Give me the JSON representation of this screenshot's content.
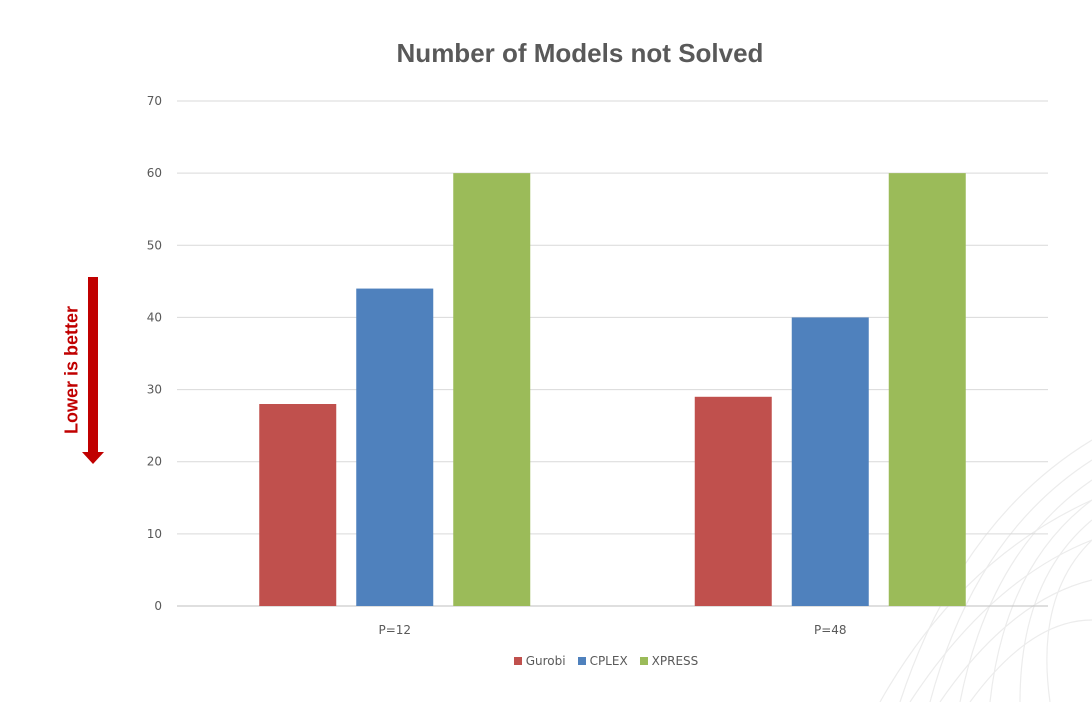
{
  "chart_data": {
    "type": "bar",
    "title": "Number of Models not Solved",
    "xlabel": "",
    "ylabel": "",
    "categories": [
      "P=12",
      "P=48"
    ],
    "series": [
      {
        "name": "Gurobi",
        "values": [
          28,
          29
        ],
        "color": "#c0504d"
      },
      {
        "name": "CPLEX",
        "values": [
          44,
          40
        ],
        "color": "#4f81bd"
      },
      {
        "name": "XPRESS",
        "values": [
          60,
          60
        ],
        "color": "#9bbb59"
      }
    ],
    "ylim": [
      0,
      70
    ],
    "yticks": [
      0,
      10,
      20,
      30,
      40,
      50,
      60,
      70
    ],
    "grid": true,
    "legend": "bottom",
    "annotation": "Lower is better"
  },
  "colors": {
    "annotation": "#c00000",
    "gridline": "#d9d9d9",
    "text": "#595959"
  }
}
